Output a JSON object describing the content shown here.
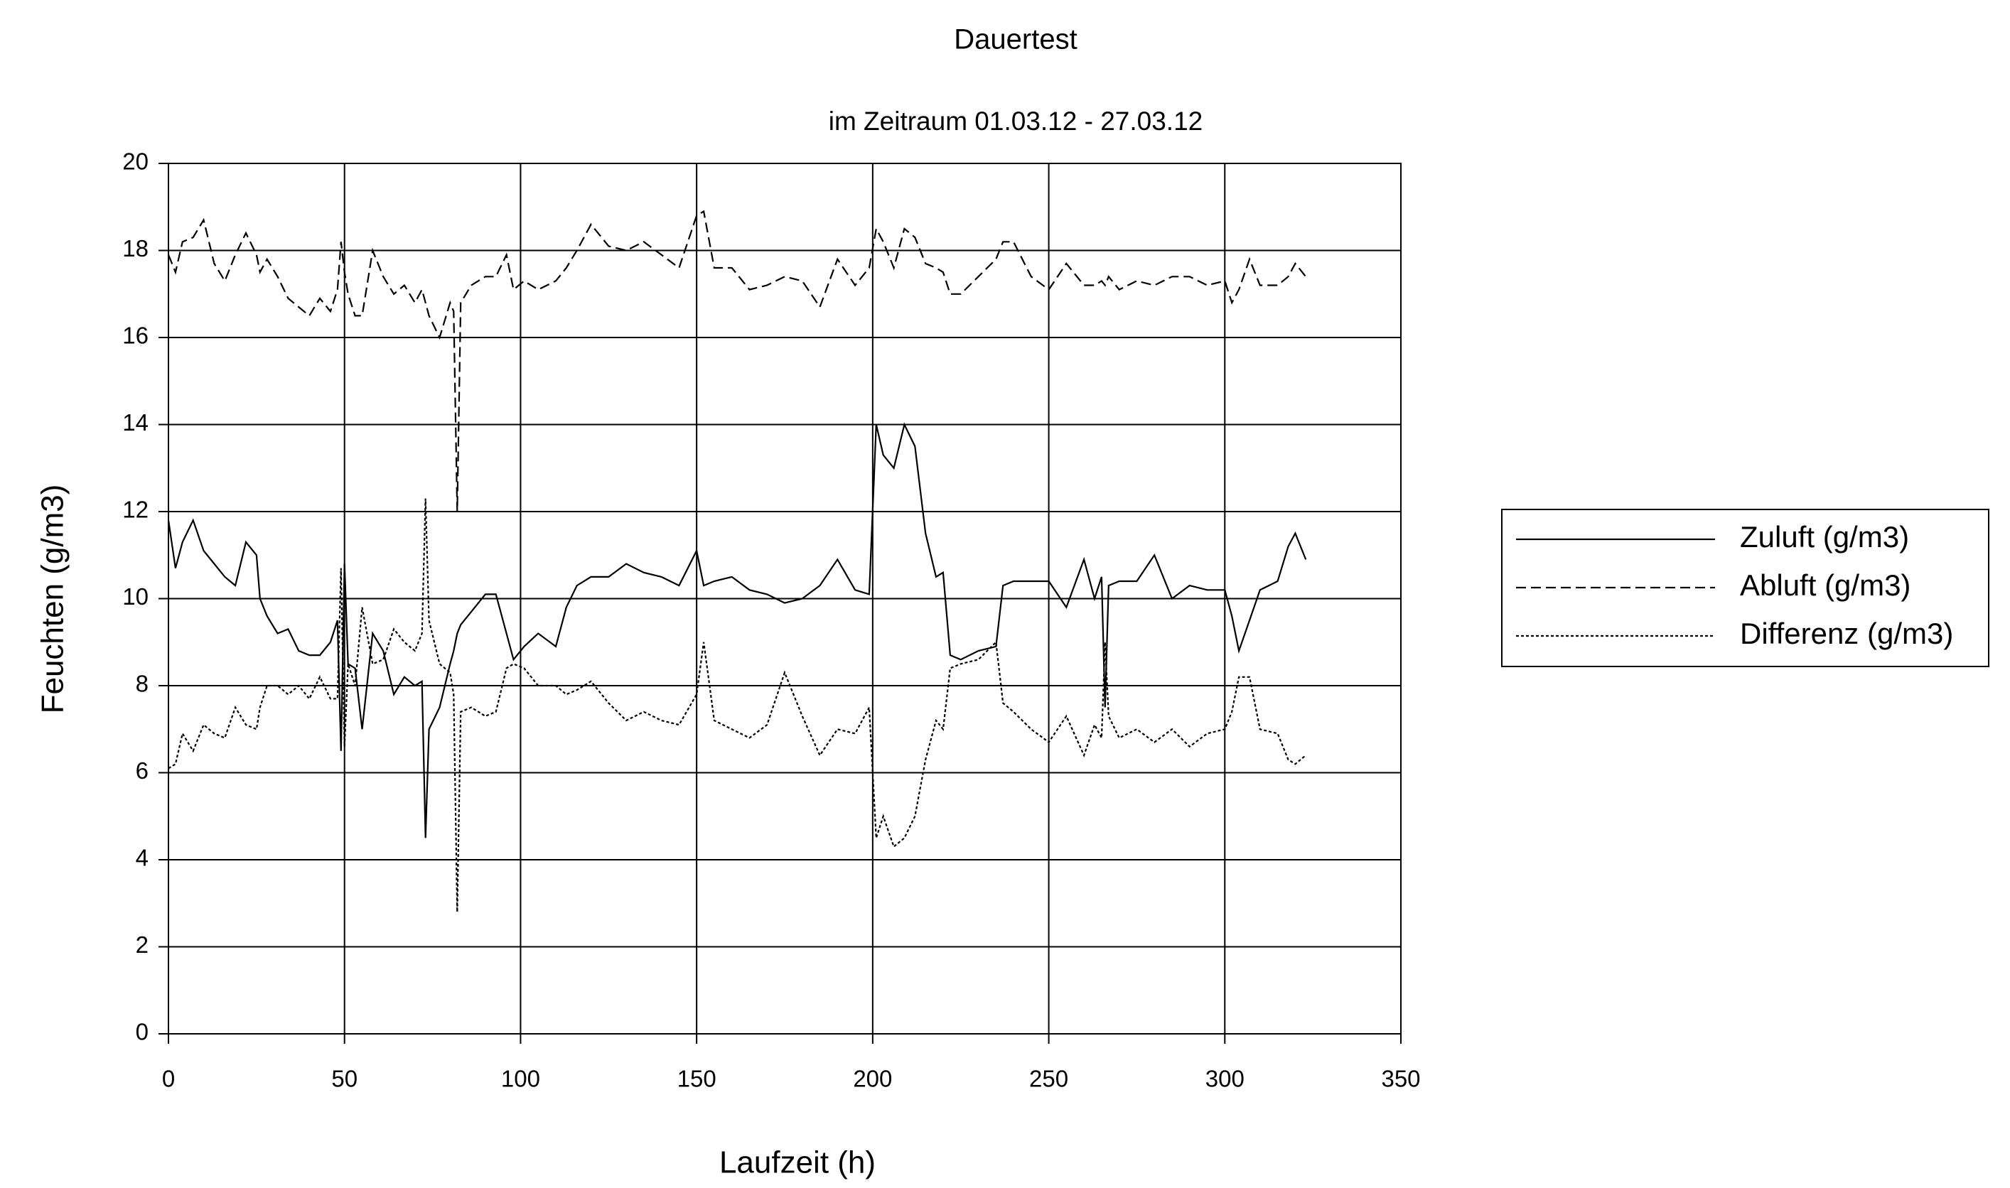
{
  "chart_data": {
    "type": "line",
    "title": "Dauertest",
    "subtitle": "im Zeitraum 01.03.12 - 27.03.12",
    "x_label": "Laufzeit (h)",
    "y_label": "Feuchten (g/m3)",
    "xlim": [
      0,
      350
    ],
    "xticks": [
      0,
      50,
      100,
      150,
      200,
      250,
      300,
      350
    ],
    "ylim": [
      0,
      20
    ],
    "yticks": [
      0,
      2,
      4,
      6,
      8,
      10,
      12,
      14,
      16,
      18,
      20
    ],
    "grid": true,
    "legend": "right",
    "x": [
      0,
      2,
      4,
      7,
      10,
      13,
      16,
      19,
      22,
      25,
      26,
      28,
      31,
      34,
      37,
      40,
      43,
      46,
      48,
      49,
      50,
      51,
      53,
      55,
      58,
      61,
      64,
      67,
      70,
      72,
      73,
      74,
      77,
      80,
      81,
      82,
      83,
      86,
      90,
      93,
      96,
      98,
      101,
      105,
      110,
      113,
      116,
      120,
      125,
      130,
      135,
      140,
      145,
      150,
      152,
      155,
      160,
      165,
      170,
      175,
      180,
      185,
      190,
      195,
      199,
      201,
      203,
      206,
      209,
      212,
      215,
      218,
      220,
      222,
      225,
      230,
      235,
      237,
      240,
      245,
      250,
      255,
      260,
      263,
      265,
      266,
      267,
      270,
      275,
      280,
      285,
      290,
      295,
      300,
      302,
      304,
      307,
      310,
      315,
      318,
      320,
      323
    ],
    "series": [
      {
        "name": "Zuluft (g/m3)",
        "color": "#000000",
        "line_style": "solid",
        "values": [
          11.8,
          10.7,
          11.3,
          11.8,
          11.1,
          10.8,
          10.5,
          10.3,
          11.3,
          11.0,
          10.0,
          9.6,
          9.2,
          9.3,
          8.8,
          8.7,
          8.7,
          9.0,
          9.5,
          6.5,
          10.8,
          8.5,
          8.4,
          7.0,
          9.2,
          8.8,
          7.8,
          8.2,
          8.0,
          8.1,
          4.5,
          7.0,
          7.5,
          8.5,
          8.8,
          9.2,
          9.4,
          9.7,
          10.1,
          10.1,
          9.2,
          8.6,
          8.9,
          9.2,
          8.9,
          9.8,
          10.3,
          10.5,
          10.5,
          10.8,
          10.6,
          10.5,
          10.3,
          11.1,
          10.3,
          10.4,
          10.5,
          10.2,
          10.1,
          9.9,
          10.0,
          10.3,
          10.9,
          10.2,
          10.1,
          14.0,
          13.3,
          13.0,
          14.0,
          13.5,
          11.5,
          10.5,
          10.6,
          8.7,
          8.6,
          8.8,
          8.9,
          10.3,
          10.4,
          10.4,
          10.4,
          9.8,
          10.9,
          10.0,
          10.5,
          7.5,
          10.3,
          10.4,
          10.4,
          11.0,
          10.0,
          10.3,
          10.2,
          10.2,
          9.6,
          8.8,
          9.5,
          10.2,
          10.4,
          11.2,
          11.5,
          10.9
        ]
      },
      {
        "name": "Abluft (g/m3)",
        "color": "#000000",
        "line_style": "dashed",
        "values": [
          17.9,
          17.5,
          18.2,
          18.3,
          18.7,
          17.7,
          17.3,
          17.9,
          18.4,
          17.9,
          17.5,
          17.8,
          17.4,
          16.9,
          16.7,
          16.5,
          16.9,
          16.6,
          17.1,
          18.2,
          17.5,
          17.0,
          16.5,
          16.5,
          18.0,
          17.4,
          17.0,
          17.2,
          16.8,
          17.1,
          16.8,
          16.5,
          16.0,
          16.8,
          16.6,
          12.0,
          16.8,
          17.2,
          17.4,
          17.4,
          17.9,
          17.1,
          17.3,
          17.1,
          17.3,
          17.6,
          18.0,
          18.6,
          18.1,
          18.0,
          18.2,
          17.9,
          17.6,
          18.8,
          18.9,
          17.6,
          17.6,
          17.1,
          17.2,
          17.4,
          17.3,
          16.7,
          17.8,
          17.2,
          17.6,
          18.5,
          18.2,
          17.6,
          18.5,
          18.3,
          17.7,
          17.6,
          17.5,
          17.0,
          17.0,
          17.4,
          17.8,
          18.2,
          18.2,
          17.4,
          17.1,
          17.7,
          17.2,
          17.2,
          17.3,
          17.2,
          17.4,
          17.1,
          17.3,
          17.2,
          17.4,
          17.4,
          17.2,
          17.3,
          16.8,
          17.1,
          17.8,
          17.2,
          17.2,
          17.4,
          17.7,
          17.4
        ]
      },
      {
        "name": "Differenz (g/m3)",
        "color": "#000000",
        "line_style": "dotted",
        "values": [
          6.1,
          6.2,
          6.9,
          6.5,
          7.1,
          6.9,
          6.8,
          7.5,
          7.1,
          7.0,
          7.5,
          8.0,
          8.0,
          7.8,
          8.0,
          7.7,
          8.2,
          7.7,
          7.7,
          10.7,
          6.6,
          8.5,
          8.0,
          9.8,
          8.5,
          8.6,
          9.3,
          9.0,
          8.8,
          9.2,
          12.3,
          9.5,
          8.5,
          8.3,
          7.8,
          2.8,
          7.4,
          7.5,
          7.3,
          7.4,
          8.4,
          8.5,
          8.4,
          8.0,
          8.0,
          7.8,
          7.9,
          8.1,
          7.6,
          7.2,
          7.4,
          7.2,
          7.1,
          7.8,
          9.0,
          7.2,
          7.0,
          6.8,
          7.1,
          8.3,
          7.3,
          6.4,
          7.0,
          6.9,
          7.5,
          4.5,
          5.0,
          4.3,
          4.5,
          5.0,
          6.3,
          7.2,
          7.0,
          8.4,
          8.5,
          8.6,
          9.0,
          7.6,
          7.4,
          7.0,
          6.7,
          7.3,
          6.4,
          7.1,
          6.8,
          9.0,
          7.3,
          6.8,
          7.0,
          6.7,
          7.0,
          6.6,
          6.9,
          7.0,
          7.4,
          8.2,
          8.2,
          7.0,
          6.9,
          6.3,
          6.2,
          6.4
        ]
      }
    ]
  }
}
